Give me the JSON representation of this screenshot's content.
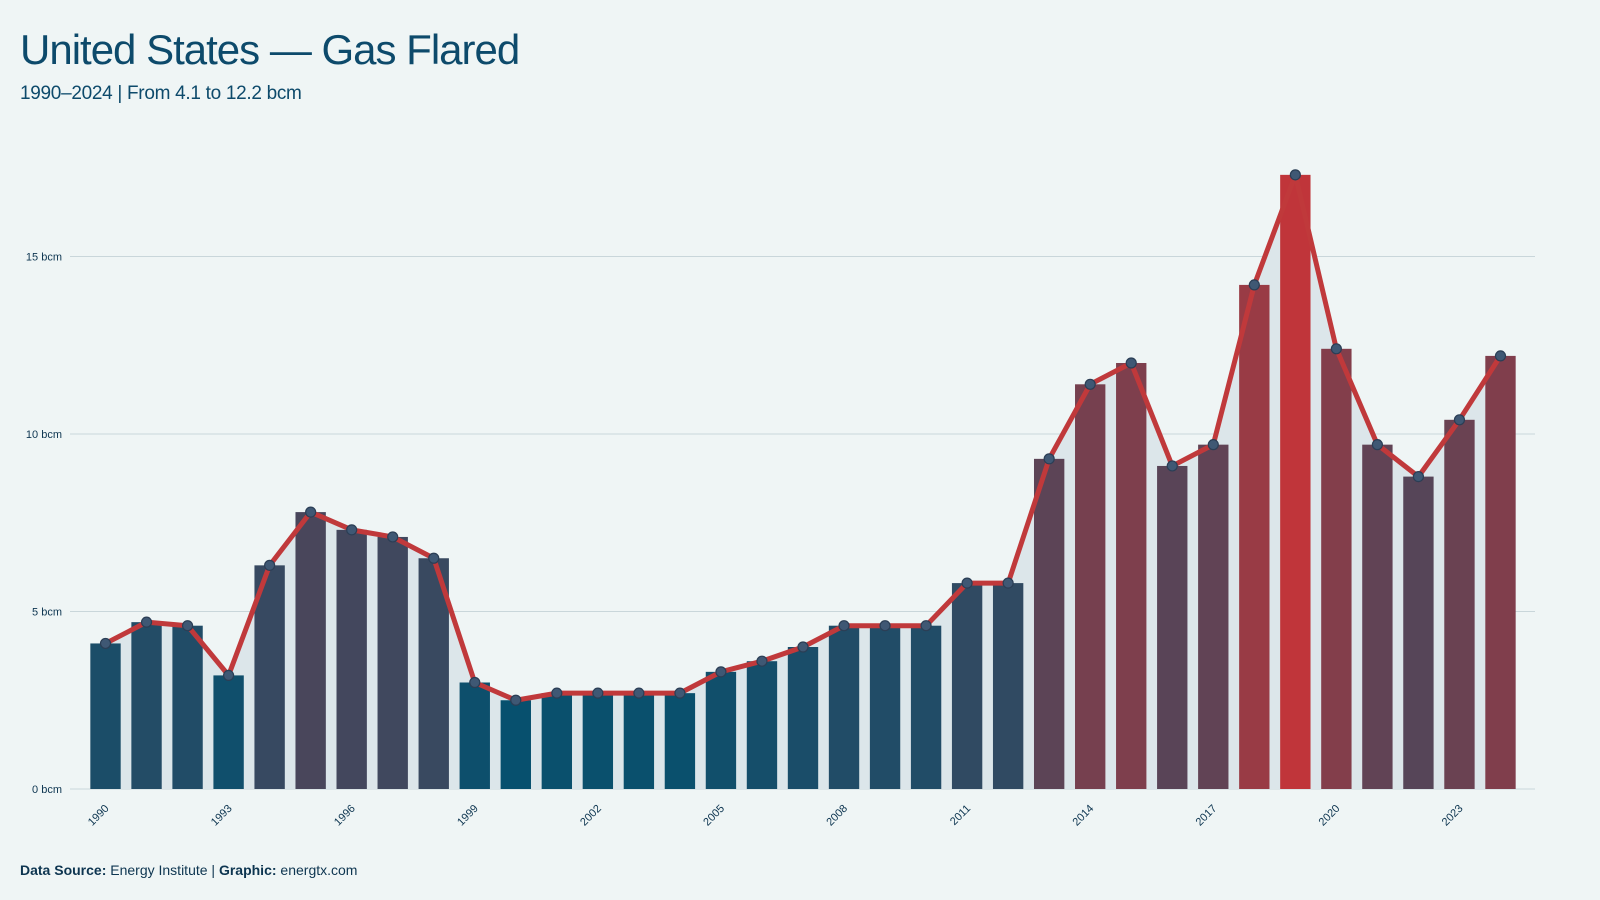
{
  "chart_data": {
    "type": "bar_line",
    "title": "United States — Gas Flared",
    "subtitle": "1990–2024 | From 4.1 to 12.2 bcm",
    "categories": [
      "1990",
      null,
      null,
      "1993",
      null,
      null,
      "1996",
      null,
      null,
      "1999",
      null,
      null,
      "2002",
      null,
      null,
      "2005",
      null,
      null,
      "2008",
      null,
      null,
      "2011",
      null,
      null,
      "2014",
      null,
      null,
      "2017",
      null,
      null,
      "2020",
      null,
      null,
      "2023",
      null
    ],
    "values": [
      4.1,
      4.7,
      4.6,
      3.2,
      6.3,
      7.8,
      7.3,
      7.1,
      6.5,
      3.0,
      2.5,
      2.7,
      2.7,
      2.7,
      2.7,
      3.3,
      3.6,
      4.0,
      4.6,
      4.6,
      4.6,
      5.8,
      5.8,
      9.3,
      11.4,
      12.0,
      9.1,
      9.7,
      14.2,
      17.3,
      12.4,
      9.7,
      8.8,
      10.4,
      12.2
    ],
    "ylim": [
      0,
      18
    ],
    "yticks": [
      {
        "value": 0,
        "label": "0 bcm"
      },
      {
        "value": 5,
        "label": "5 bcm"
      },
      {
        "value": 10,
        "label": "10 bcm"
      },
      {
        "value": 15,
        "label": "15 bcm"
      }
    ],
    "grid": true,
    "color_low": "#07506e",
    "color_high": "#c0353a",
    "line_color": "#c0393b",
    "area_color": "#dce6ea",
    "source": {
      "label": "Data Source:",
      "text": "Energy Institute",
      "separator": "|",
      "graphic_label": "Graphic:",
      "graphic_text": "energtx.com"
    }
  }
}
